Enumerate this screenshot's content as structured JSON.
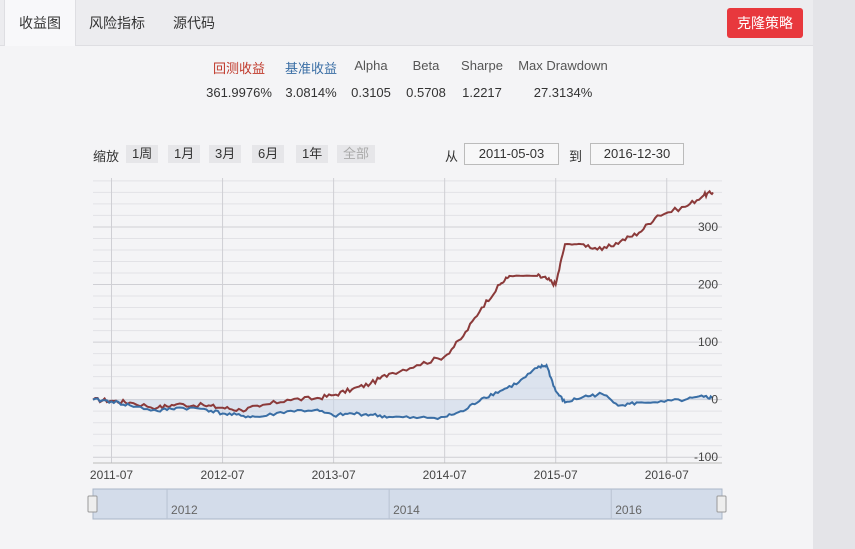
{
  "tabs": [
    {
      "label": "收益图",
      "active": true
    },
    {
      "label": "风险指标",
      "active": false
    },
    {
      "label": "源代码",
      "active": false
    }
  ],
  "clone_button": {
    "label": "克隆策略",
    "color": "#e8383d"
  },
  "metrics": [
    {
      "label": "回测收益",
      "value": "361.9976%",
      "color": "#c0392b"
    },
    {
      "label": "基准收益",
      "value": "3.0814%",
      "color": "#3a6ea5"
    },
    {
      "label": "Alpha",
      "value": "0.3105",
      "color": "#555555"
    },
    {
      "label": "Beta",
      "value": "0.5708",
      "color": "#555555"
    },
    {
      "label": "Sharpe",
      "value": "1.2217",
      "color": "#555555"
    },
    {
      "label": "Max Drawdown",
      "value": "27.3134%",
      "color": "#555555"
    }
  ],
  "range_selector": {
    "zoom_label": "缩放",
    "buttons": [
      {
        "label": "1周",
        "enabled": true
      },
      {
        "label": "1月",
        "enabled": true
      },
      {
        "label": "3月",
        "enabled": true
      },
      {
        "label": "6月",
        "enabled": true
      },
      {
        "label": "1年",
        "enabled": true
      },
      {
        "label": "全部",
        "enabled": false
      }
    ],
    "from_label": "从",
    "from_date": "2011-05-03",
    "to_label": "到",
    "to_date": "2016-12-30"
  },
  "chart_data": {
    "type": "line",
    "x_ticks": [
      "2011-07",
      "2012-07",
      "2013-07",
      "2014-07",
      "2015-07",
      "2016-07"
    ],
    "y_ticks": [
      -100,
      0,
      100,
      200,
      300
    ],
    "ylim": [
      -110,
      385
    ],
    "navigator_ticks": [
      "2012",
      "2014",
      "2016"
    ],
    "series": [
      {
        "color": "#8b3a3a",
        "points": [
          [
            "2011-05",
            0
          ],
          [
            "2011-07",
            -2
          ],
          [
            "2011-09",
            -5
          ],
          [
            "2011-12",
            -14
          ],
          [
            "2012-02",
            -8
          ],
          [
            "2012-05",
            -10
          ],
          [
            "2012-07",
            -14
          ],
          [
            "2012-09",
            -18
          ],
          [
            "2012-11",
            -12
          ],
          [
            "2013-02",
            0
          ],
          [
            "2013-05",
            2
          ],
          [
            "2013-07",
            8
          ],
          [
            "2013-09",
            18
          ],
          [
            "2013-11",
            28
          ],
          [
            "2014-01",
            45
          ],
          [
            "2014-04",
            60
          ],
          [
            "2014-07",
            75
          ],
          [
            "2014-09",
            110
          ],
          [
            "2014-11",
            160
          ],
          [
            "2015-01",
            200
          ],
          [
            "2015-02",
            215
          ],
          [
            "2015-05",
            215
          ],
          [
            "2015-06",
            210
          ],
          [
            "2015-07",
            200
          ],
          [
            "2015-08",
            270
          ],
          [
            "2015-10",
            270
          ],
          [
            "2015-12",
            260
          ],
          [
            "2016-02",
            275
          ],
          [
            "2016-04",
            290
          ],
          [
            "2016-06",
            320
          ],
          [
            "2016-09",
            335
          ],
          [
            "2016-11",
            355
          ],
          [
            "2016-12",
            360
          ]
        ]
      },
      {
        "color": "#3a6ea5",
        "points": [
          [
            "2011-05",
            0
          ],
          [
            "2011-07",
            -3
          ],
          [
            "2011-09",
            -10
          ],
          [
            "2011-12",
            -20
          ],
          [
            "2012-02",
            -14
          ],
          [
            "2012-05",
            -16
          ],
          [
            "2012-07",
            -24
          ],
          [
            "2012-09",
            -28
          ],
          [
            "2012-11",
            -30
          ],
          [
            "2013-02",
            -20
          ],
          [
            "2013-05",
            -18
          ],
          [
            "2013-07",
            -28
          ],
          [
            "2013-09",
            -24
          ],
          [
            "2013-11",
            -26
          ],
          [
            "2014-01",
            -30
          ],
          [
            "2014-04",
            -32
          ],
          [
            "2014-07",
            -30
          ],
          [
            "2014-09",
            -20
          ],
          [
            "2014-11",
            2
          ],
          [
            "2015-01",
            15
          ],
          [
            "2015-03",
            30
          ],
          [
            "2015-05",
            55
          ],
          [
            "2015-06",
            60
          ],
          [
            "2015-07",
            15
          ],
          [
            "2015-08",
            -5
          ],
          [
            "2015-10",
            5
          ],
          [
            "2015-12",
            10
          ],
          [
            "2016-02",
            -10
          ],
          [
            "2016-04",
            -5
          ],
          [
            "2016-06",
            -5
          ],
          [
            "2016-09",
            0
          ],
          [
            "2016-11",
            5
          ],
          [
            "2016-12",
            3
          ]
        ]
      }
    ]
  }
}
